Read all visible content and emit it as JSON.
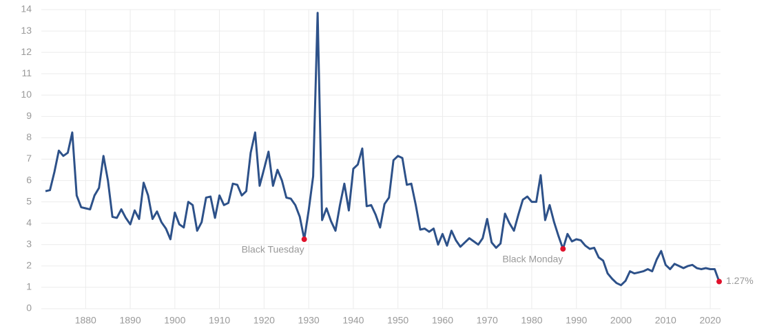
{
  "chart_data": {
    "type": "line",
    "x": [
      1871,
      1872,
      1873,
      1874,
      1875,
      1876,
      1877,
      1878,
      1879,
      1880,
      1881,
      1882,
      1883,
      1884,
      1885,
      1886,
      1887,
      1888,
      1889,
      1890,
      1891,
      1892,
      1893,
      1894,
      1895,
      1896,
      1897,
      1898,
      1899,
      1900,
      1901,
      1902,
      1903,
      1904,
      1905,
      1906,
      1907,
      1908,
      1909,
      1910,
      1911,
      1912,
      1913,
      1914,
      1915,
      1916,
      1917,
      1918,
      1919,
      1920,
      1921,
      1922,
      1923,
      1924,
      1925,
      1926,
      1927,
      1928,
      1929,
      1930,
      1931,
      1932,
      1933,
      1934,
      1935,
      1936,
      1937,
      1938,
      1939,
      1940,
      1941,
      1942,
      1943,
      1944,
      1945,
      1946,
      1947,
      1948,
      1949,
      1950,
      1951,
      1952,
      1953,
      1954,
      1955,
      1956,
      1957,
      1958,
      1959,
      1960,
      1961,
      1962,
      1963,
      1964,
      1965,
      1966,
      1967,
      1968,
      1969,
      1970,
      1971,
      1972,
      1973,
      1974,
      1975,
      1976,
      1977,
      1978,
      1979,
      1980,
      1981,
      1982,
      1983,
      1984,
      1985,
      1986,
      1987,
      1988,
      1989,
      1990,
      1991,
      1992,
      1993,
      1994,
      1995,
      1996,
      1997,
      1998,
      1999,
      2000,
      2001,
      2002,
      2003,
      2004,
      2005,
      2006,
      2007,
      2008,
      2009,
      2010,
      2011,
      2012,
      2013,
      2014,
      2015,
      2016,
      2017,
      2018,
      2019,
      2020,
      2021,
      2022
    ],
    "series": [
      {
        "color": "#2d5189",
        "values": [
          5.5,
          5.55,
          6.4,
          7.4,
          7.15,
          7.3,
          8.25,
          5.3,
          4.75,
          4.7,
          4.65,
          5.3,
          5.65,
          7.15,
          6.0,
          4.3,
          4.25,
          4.65,
          4.25,
          3.95,
          4.6,
          4.2,
          5.9,
          5.3,
          4.2,
          4.55,
          4.05,
          3.75,
          3.25,
          4.5,
          3.95,
          3.8,
          5.0,
          4.85,
          3.65,
          4.05,
          5.2,
          5.25,
          4.25,
          5.3,
          4.85,
          4.95,
          5.85,
          5.8,
          5.3,
          5.5,
          7.3,
          8.25,
          5.75,
          6.55,
          7.35,
          5.75,
          6.5,
          6.0,
          5.2,
          5.15,
          4.85,
          4.3,
          3.25,
          4.6,
          6.2,
          13.85,
          4.15,
          4.7,
          4.1,
          3.65,
          4.85,
          5.85,
          4.6,
          6.55,
          6.75,
          7.5,
          4.8,
          4.85,
          4.4,
          3.8,
          4.9,
          5.2,
          6.95,
          7.15,
          7.05,
          5.8,
          5.85,
          4.85,
          3.7,
          3.75,
          3.6,
          3.75,
          3.0,
          3.5,
          2.95,
          3.65,
          3.2,
          2.9,
          3.1,
          3.3,
          3.15,
          3.0,
          3.3,
          4.2,
          3.1,
          2.85,
          3.05,
          4.45,
          4.0,
          3.65,
          4.4,
          5.1,
          5.25,
          5.0,
          5.0,
          6.25,
          4.15,
          4.85,
          4.05,
          3.4,
          2.8,
          3.5,
          3.15,
          3.25,
          3.2,
          2.95,
          2.8,
          2.85,
          2.4,
          2.25,
          1.65,
          1.4,
          1.2,
          1.1,
          1.3,
          1.75,
          1.65,
          1.7,
          1.75,
          1.85,
          1.75,
          2.3,
          2.7,
          2.05,
          1.85,
          2.1,
          2.0,
          1.9,
          2.0,
          2.05,
          1.9,
          1.85,
          1.9,
          1.85,
          1.85,
          1.27
        ]
      }
    ],
    "highlight_color": "#e0112b",
    "annotations": [
      {
        "text": "Black Tuesday",
        "x": 1929
      },
      {
        "text": "Black Monday",
        "x": 1987
      }
    ],
    "end_label": "1.27%",
    "xlim": [
      1871,
      2022
    ],
    "ylim": [
      0,
      14
    ],
    "xticks": [
      1880,
      1890,
      1900,
      1910,
      1920,
      1930,
      1940,
      1950,
      1960,
      1970,
      1980,
      1990,
      2000,
      2010,
      2020
    ],
    "yticks": [
      0,
      1,
      2,
      3,
      4,
      5,
      6,
      7,
      8,
      9,
      10,
      11,
      12,
      13,
      14
    ],
    "grid": true
  }
}
